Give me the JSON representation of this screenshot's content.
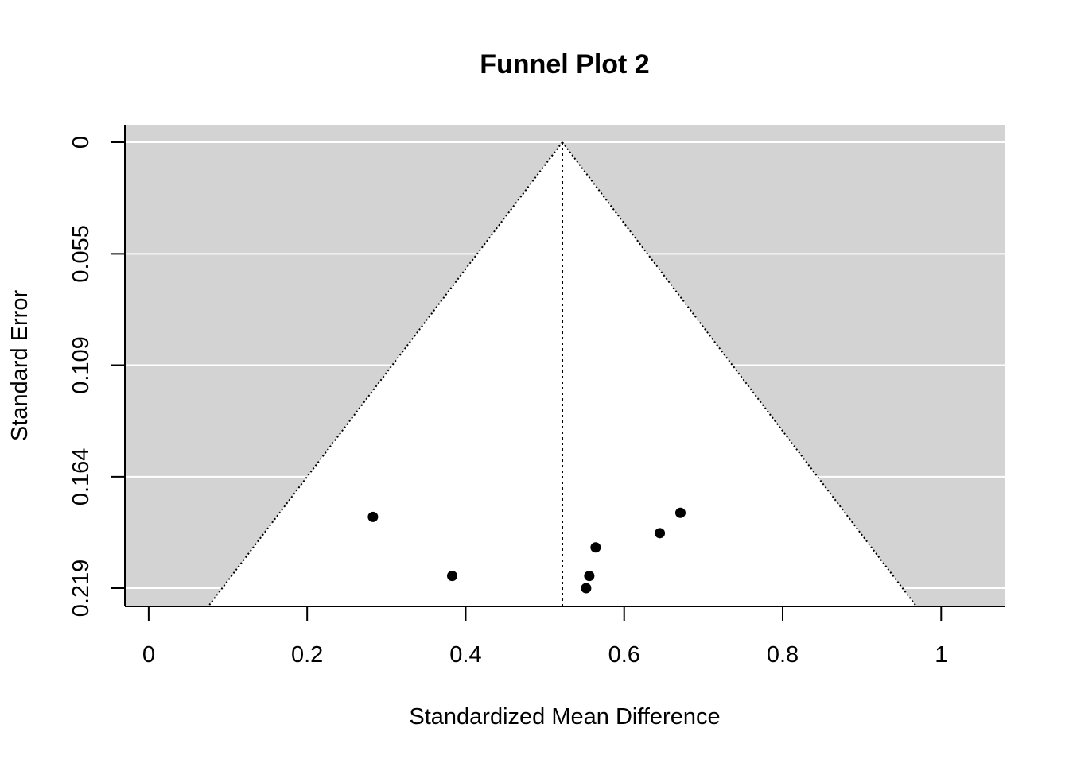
{
  "chart_data": {
    "type": "scatter",
    "title": "Funnel Plot 2",
    "xlabel": "Standardized Mean Difference",
    "ylabel": "Standard Error",
    "xlim": [
      -0.03,
      1.08
    ],
    "ylim": [
      0,
      0.2275
    ],
    "y_reversed": true,
    "x_ticks": [
      {
        "value": 0,
        "label": "0"
      },
      {
        "value": 0.2,
        "label": "0.2"
      },
      {
        "value": 0.4,
        "label": "0.4"
      },
      {
        "value": 0.6,
        "label": "0.6"
      },
      {
        "value": 0.8,
        "label": "0.8"
      },
      {
        "value": 1,
        "label": "1"
      }
    ],
    "y_ticks": [
      {
        "value": 0,
        "label": "0"
      },
      {
        "value": 0.0548,
        "label": "0.055"
      },
      {
        "value": 0.1095,
        "label": "0.109"
      },
      {
        "value": 0.1643,
        "label": "0.164"
      },
      {
        "value": 0.219,
        "label": "0.219"
      }
    ],
    "center_estimate": 0.522,
    "funnel_multiplier": 1.96,
    "background_color": "#d3d3d3",
    "funnel_fill": "#ffffff",
    "gridlines": "horizontal",
    "points": [
      {
        "x": 0.283,
        "y": 0.184
      },
      {
        "x": 0.383,
        "y": 0.213
      },
      {
        "x": 0.552,
        "y": 0.219
      },
      {
        "x": 0.556,
        "y": 0.213
      },
      {
        "x": 0.564,
        "y": 0.199
      },
      {
        "x": 0.645,
        "y": 0.192
      },
      {
        "x": 0.671,
        "y": 0.182
      }
    ]
  }
}
